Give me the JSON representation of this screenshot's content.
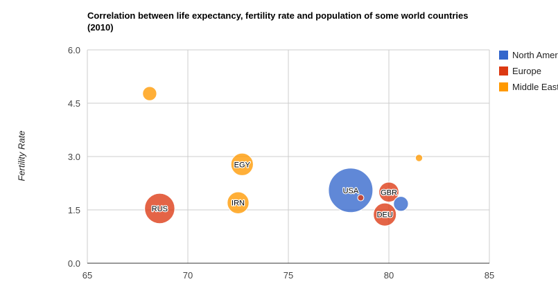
{
  "chart_data": {
    "type": "scatter",
    "title": "Correlation between life expectancy, fertility rate and population of some world countries (2010)",
    "xlabel": "",
    "ylabel": "Fertility Rate",
    "xlim": [
      65,
      85
    ],
    "ylim": [
      0,
      6
    ],
    "x_ticks": [
      "65",
      "70",
      "75",
      "80",
      "85"
    ],
    "y_ticks": [
      "0.0",
      "1.5",
      "3.0",
      "4.5",
      "6.0"
    ],
    "grid": true,
    "legend_position": "right",
    "series": [
      {
        "name": "North America",
        "color": "#3366cc",
        "points": [
          {
            "label": "USA",
            "x": 78.1,
            "y": 2.05,
            "size": 307
          },
          {
            "label": "",
            "x": 80.6,
            "y": 1.67,
            "size": 34
          }
        ]
      },
      {
        "name": "Europe",
        "color": "#dc3912",
        "points": [
          {
            "label": "RUS",
            "x": 68.6,
            "y": 1.54,
            "size": 142
          },
          {
            "label": "GBR",
            "x": 80.0,
            "y": 2.0,
            "size": 62
          },
          {
            "label": "DEU",
            "x": 79.8,
            "y": 1.37,
            "size": 82
          },
          {
            "label": "",
            "x": 78.6,
            "y": 1.84,
            "size": 6
          }
        ]
      },
      {
        "name": "Middle East",
        "color": "#ff9900",
        "points": [
          {
            "label": "EGY",
            "x": 72.7,
            "y": 2.78,
            "size": 78
          },
          {
            "label": "IRN",
            "x": 72.5,
            "y": 1.7,
            "size": 74
          },
          {
            "label": "",
            "x": 68.1,
            "y": 4.77,
            "size": 31
          },
          {
            "label": "",
            "x": 81.5,
            "y": 2.96,
            "size": 8
          }
        ]
      }
    ]
  }
}
